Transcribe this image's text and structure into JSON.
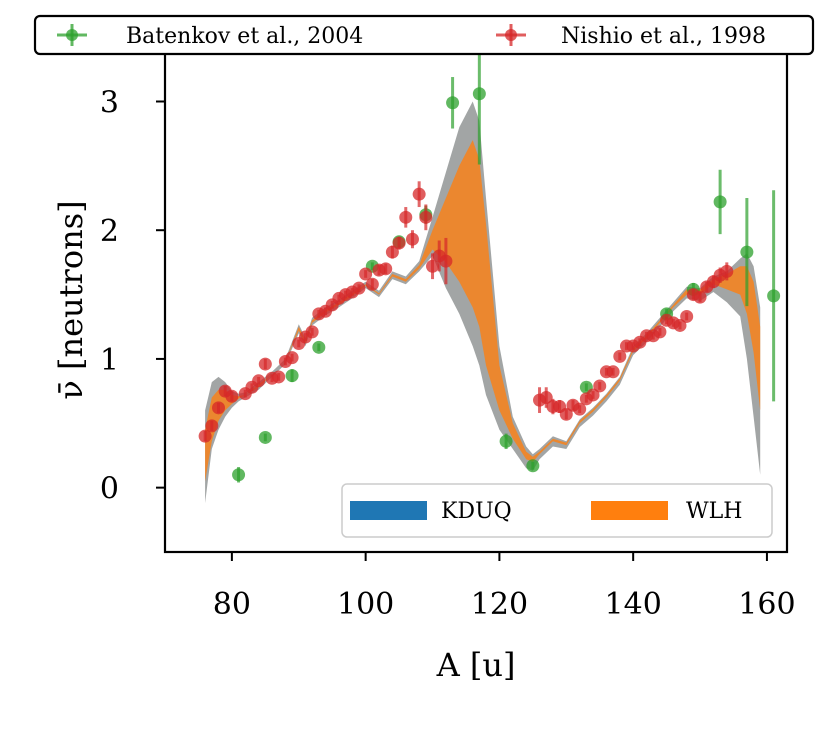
{
  "chart_data": {
    "type": "line",
    "xlabel": "A [u]",
    "ylabel": "ν̄ [neutrons]",
    "xlim": [
      70,
      163
    ],
    "ylim": [
      -0.5,
      3.4
    ],
    "x_ticks": [
      80,
      100,
      120,
      140,
      160
    ],
    "y_ticks": [
      0,
      1,
      2,
      3
    ],
    "grid": false,
    "top_legend_placement": "above-plot",
    "bottom_legend_placement": "lower-right",
    "colors": {
      "kduq": "#1f77b4",
      "wlh": "#ff7f0e",
      "kduq_band": "#7a7f7f",
      "wlh_band": "#c7a78a",
      "batenkov": "#2ca02c",
      "nishio": "#d62728"
    },
    "bands": [
      {
        "name": "KDUQ",
        "x": [
          76,
          77,
          78,
          79,
          80,
          81,
          82,
          84,
          86,
          88,
          90,
          91,
          92,
          94,
          96,
          98,
          100,
          102,
          104,
          106,
          108,
          110,
          112,
          114,
          116,
          117,
          118,
          120,
          122,
          124,
          125,
          126,
          128,
          130,
          132,
          134,
          136,
          138,
          140,
          142,
          144,
          146,
          148,
          150,
          152,
          154,
          156,
          157,
          158,
          159
        ],
        "lower": [
          -0.12,
          0.3,
          0.45,
          0.55,
          0.62,
          0.67,
          0.7,
          0.76,
          0.86,
          0.96,
          1.2,
          1.1,
          1.26,
          1.34,
          1.4,
          1.47,
          1.55,
          1.48,
          1.62,
          1.58,
          1.68,
          1.8,
          1.55,
          1.35,
          1.1,
          0.95,
          0.72,
          0.45,
          0.3,
          0.15,
          0.13,
          0.22,
          0.32,
          0.3,
          0.47,
          0.56,
          0.67,
          0.8,
          1.03,
          1.13,
          1.25,
          1.37,
          1.47,
          1.45,
          1.52,
          1.44,
          1.33,
          1.0,
          0.55,
          0.1
        ],
        "upper": [
          0.6,
          0.82,
          0.86,
          0.82,
          0.75,
          0.73,
          0.74,
          0.82,
          0.9,
          1.0,
          1.27,
          1.16,
          1.32,
          1.4,
          1.46,
          1.53,
          1.6,
          1.53,
          1.68,
          1.64,
          1.76,
          2.1,
          2.45,
          2.8,
          3.0,
          2.85,
          2.25,
          1.1,
          0.55,
          0.32,
          0.26,
          0.3,
          0.4,
          0.36,
          0.53,
          0.62,
          0.73,
          0.86,
          1.1,
          1.2,
          1.32,
          1.44,
          1.56,
          1.55,
          1.64,
          1.68,
          1.78,
          1.82,
          1.72,
          1.4
        ]
      },
      {
        "name": "WLH",
        "x": [
          76,
          77,
          78,
          79,
          80,
          81,
          82,
          84,
          86,
          88,
          90,
          91,
          92,
          94,
          96,
          98,
          100,
          102,
          104,
          106,
          108,
          110,
          112,
          114,
          116,
          117,
          118,
          120,
          122,
          124,
          125,
          126,
          128,
          130,
          132,
          134,
          136,
          138,
          140,
          142,
          144,
          146,
          148,
          150,
          152,
          154,
          156,
          157,
          158,
          159
        ],
        "lower": [
          0.05,
          0.36,
          0.52,
          0.6,
          0.65,
          0.69,
          0.72,
          0.78,
          0.88,
          0.98,
          1.22,
          1.12,
          1.28,
          1.36,
          1.42,
          1.49,
          1.57,
          1.5,
          1.64,
          1.6,
          1.7,
          1.85,
          1.75,
          1.6,
          1.4,
          1.25,
          0.95,
          0.6,
          0.38,
          0.22,
          0.2,
          0.26,
          0.36,
          0.33,
          0.5,
          0.59,
          0.7,
          0.83,
          1.06,
          1.16,
          1.28,
          1.4,
          1.5,
          1.5,
          1.58,
          1.54,
          1.5,
          1.35,
          1.05,
          0.6
        ],
        "upper": [
          0.45,
          0.7,
          0.76,
          0.76,
          0.72,
          0.71,
          0.72,
          0.8,
          0.88,
          0.98,
          1.25,
          1.14,
          1.3,
          1.38,
          1.44,
          1.51,
          1.58,
          1.51,
          1.66,
          1.62,
          1.73,
          2.0,
          2.25,
          2.5,
          2.7,
          2.55,
          2.05,
          0.95,
          0.5,
          0.28,
          0.24,
          0.28,
          0.38,
          0.35,
          0.52,
          0.61,
          0.72,
          0.85,
          1.08,
          1.18,
          1.3,
          1.42,
          1.54,
          1.54,
          1.62,
          1.66,
          1.72,
          1.72,
          1.6,
          1.25
        ]
      }
    ],
    "series": [
      {
        "name": "Batenkov et al., 2004",
        "points": [
          {
            "x": 81,
            "y": 0.1,
            "err": 0.06
          },
          {
            "x": 85,
            "y": 0.39,
            "err": 0.03
          },
          {
            "x": 89,
            "y": 0.87,
            "err": 0.05
          },
          {
            "x": 93,
            "y": 1.09,
            "err": 0.03
          },
          {
            "x": 101,
            "y": 1.72,
            "err": 0.03
          },
          {
            "x": 105,
            "y": 1.91,
            "err": 0.04
          },
          {
            "x": 109,
            "y": 2.12,
            "err": 0.07
          },
          {
            "x": 113,
            "y": 2.99,
            "err": 0.2
          },
          {
            "x": 117,
            "y": 3.06,
            "err": 0.55
          },
          {
            "x": 121,
            "y": 0.36,
            "err": 0.06
          },
          {
            "x": 125,
            "y": 0.17,
            "err": 0.03
          },
          {
            "x": 133,
            "y": 0.78,
            "err": 0.03
          },
          {
            "x": 145,
            "y": 1.35,
            "err": 0.04
          },
          {
            "x": 149,
            "y": 1.54,
            "err": 0.05
          },
          {
            "x": 153,
            "y": 2.22,
            "err": 0.25
          },
          {
            "x": 157,
            "y": 1.83,
            "err": 0.42
          },
          {
            "x": 161,
            "y": 1.49,
            "err": 0.82
          }
        ]
      },
      {
        "name": "Nishio et al., 1998",
        "points": [
          {
            "x": 76,
            "y": 0.4,
            "err": 0.04
          },
          {
            "x": 77,
            "y": 0.48,
            "err": 0.04
          },
          {
            "x": 78,
            "y": 0.62,
            "err": 0.04
          },
          {
            "x": 79,
            "y": 0.75,
            "err": 0.04
          },
          {
            "x": 80,
            "y": 0.71,
            "err": 0.04
          },
          {
            "x": 82,
            "y": 0.73,
            "err": 0.03
          },
          {
            "x": 83,
            "y": 0.78,
            "err": 0.03
          },
          {
            "x": 84,
            "y": 0.83,
            "err": 0.03
          },
          {
            "x": 85,
            "y": 0.96,
            "err": 0.04
          },
          {
            "x": 86,
            "y": 0.85,
            "err": 0.03
          },
          {
            "x": 87,
            "y": 0.86,
            "err": 0.03
          },
          {
            "x": 88,
            "y": 0.98,
            "err": 0.03
          },
          {
            "x": 89,
            "y": 1.01,
            "err": 0.03
          },
          {
            "x": 90,
            "y": 1.12,
            "err": 0.03
          },
          {
            "x": 91,
            "y": 1.17,
            "err": 0.03
          },
          {
            "x": 92,
            "y": 1.21,
            "err": 0.03
          },
          {
            "x": 93,
            "y": 1.35,
            "err": 0.03
          },
          {
            "x": 94,
            "y": 1.37,
            "err": 0.03
          },
          {
            "x": 95,
            "y": 1.42,
            "err": 0.03
          },
          {
            "x": 96,
            "y": 1.47,
            "err": 0.03
          },
          {
            "x": 97,
            "y": 1.5,
            "err": 0.03
          },
          {
            "x": 98,
            "y": 1.52,
            "err": 0.03
          },
          {
            "x": 99,
            "y": 1.55,
            "err": 0.03
          },
          {
            "x": 100,
            "y": 1.66,
            "err": 0.03
          },
          {
            "x": 101,
            "y": 1.58,
            "err": 0.04
          },
          {
            "x": 102,
            "y": 1.69,
            "err": 0.04
          },
          {
            "x": 103,
            "y": 1.7,
            "err": 0.04
          },
          {
            "x": 104,
            "y": 1.83,
            "err": 0.05
          },
          {
            "x": 105,
            "y": 1.9,
            "err": 0.05
          },
          {
            "x": 106,
            "y": 2.1,
            "err": 0.08
          },
          {
            "x": 107,
            "y": 1.93,
            "err": 0.07
          },
          {
            "x": 108,
            "y": 2.28,
            "err": 0.1
          },
          {
            "x": 109,
            "y": 2.1,
            "err": 0.1
          },
          {
            "x": 110,
            "y": 1.72,
            "err": 0.1
          },
          {
            "x": 111,
            "y": 1.8,
            "err": 0.12
          },
          {
            "x": 112,
            "y": 1.76,
            "err": 0.18
          },
          {
            "x": 126,
            "y": 0.68,
            "err": 0.1
          },
          {
            "x": 127,
            "y": 0.7,
            "err": 0.08
          },
          {
            "x": 128,
            "y": 0.63,
            "err": 0.06
          },
          {
            "x": 129,
            "y": 0.63,
            "err": 0.05
          },
          {
            "x": 130,
            "y": 0.57,
            "err": 0.04
          },
          {
            "x": 131,
            "y": 0.64,
            "err": 0.04
          },
          {
            "x": 132,
            "y": 0.61,
            "err": 0.03
          },
          {
            "x": 133,
            "y": 0.69,
            "err": 0.03
          },
          {
            "x": 134,
            "y": 0.72,
            "err": 0.03
          },
          {
            "x": 135,
            "y": 0.79,
            "err": 0.03
          },
          {
            "x": 136,
            "y": 0.9,
            "err": 0.03
          },
          {
            "x": 137,
            "y": 0.9,
            "err": 0.03
          },
          {
            "x": 138,
            "y": 1.02,
            "err": 0.03
          },
          {
            "x": 139,
            "y": 1.1,
            "err": 0.03
          },
          {
            "x": 140,
            "y": 1.1,
            "err": 0.03
          },
          {
            "x": 141,
            "y": 1.13,
            "err": 0.03
          },
          {
            "x": 142,
            "y": 1.18,
            "err": 0.03
          },
          {
            "x": 143,
            "y": 1.18,
            "err": 0.03
          },
          {
            "x": 144,
            "y": 1.21,
            "err": 0.03
          },
          {
            "x": 145,
            "y": 1.3,
            "err": 0.03
          },
          {
            "x": 146,
            "y": 1.28,
            "err": 0.03
          },
          {
            "x": 147,
            "y": 1.26,
            "err": 0.03
          },
          {
            "x": 148,
            "y": 1.33,
            "err": 0.03
          },
          {
            "x": 149,
            "y": 1.5,
            "err": 0.04
          },
          {
            "x": 150,
            "y": 1.48,
            "err": 0.04
          },
          {
            "x": 151,
            "y": 1.56,
            "err": 0.04
          },
          {
            "x": 152,
            "y": 1.6,
            "err": 0.05
          },
          {
            "x": 153,
            "y": 1.65,
            "err": 0.06
          },
          {
            "x": 154,
            "y": 1.68,
            "err": 0.07
          }
        ]
      }
    ],
    "legend_top": [
      "Batenkov et al., 2004",
      "Nishio et al., 1998"
    ],
    "legend_bottom": [
      "KDUQ",
      "WLH"
    ]
  }
}
